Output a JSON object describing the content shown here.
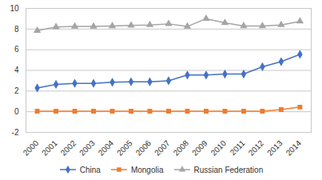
{
  "chart_data": {
    "type": "line",
    "x": [
      2000,
      2001,
      2002,
      2003,
      2004,
      2005,
      2006,
      2007,
      2008,
      2009,
      2010,
      2011,
      2012,
      2013,
      2014
    ],
    "xlim": [
      1999.4,
      2014.6
    ],
    "xticks": [
      2000,
      2001,
      2002,
      2003,
      2004,
      2005,
      2006,
      2007,
      2008,
      2009,
      2010,
      2011,
      2012,
      2013,
      2014
    ],
    "ylim": [
      -2,
      10
    ],
    "yticks": [
      -2,
      0,
      2,
      4,
      6,
      8,
      10
    ],
    "grid": true,
    "legend": "bottom",
    "series": [
      {
        "name": "China",
        "color": "#4472c4",
        "marker": "diamond",
        "values": [
          2.3,
          2.65,
          2.75,
          2.75,
          2.85,
          2.9,
          2.9,
          3.0,
          3.55,
          3.55,
          3.65,
          3.65,
          4.35,
          4.85,
          5.55
        ]
      },
      {
        "name": "Mongolia",
        "color": "#ed7d31",
        "marker": "square",
        "values": [
          0.05,
          0.05,
          0.05,
          0.05,
          0.05,
          0.05,
          0.05,
          0.05,
          0.05,
          0.05,
          0.05,
          0.05,
          0.05,
          0.2,
          0.45
        ]
      },
      {
        "name": "Russian Federation",
        "color": "#a5a5a5",
        "marker": "triangle",
        "values": [
          7.85,
          8.2,
          8.25,
          8.25,
          8.3,
          8.35,
          8.4,
          8.5,
          8.25,
          9.0,
          8.6,
          8.3,
          8.3,
          8.4,
          8.75
        ]
      }
    ]
  }
}
